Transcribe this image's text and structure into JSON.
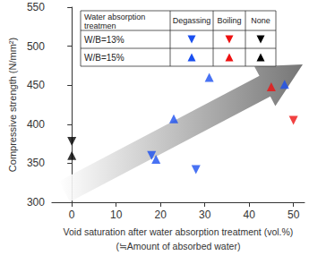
{
  "chart_data": {
    "type": "scatter",
    "xlabel": "Void saturation after water absorption treatment (vol.%)\n(≒Amount of absorbed water)",
    "ylabel": "Compressive strength (N/mm²)",
    "xlim": [
      -4.5,
      52.5
    ],
    "xticks": [
      0,
      10,
      20,
      30,
      40,
      50
    ],
    "ylim": [
      300,
      550
    ],
    "yticks": [
      300,
      350,
      400,
      450,
      500,
      550
    ],
    "grid": false,
    "legend_table": {
      "corner_label": "Water absorption treatmen",
      "columns": [
        "Degassing",
        "Boiling",
        "None"
      ],
      "rows": [
        "W/B=13%",
        "W/B=15%"
      ]
    },
    "series": [
      {
        "mix": "W/B=13%",
        "treatment": "Degassing",
        "color": "#1a4ff0",
        "marker": "triangle-down",
        "x": [
          18,
          28
        ],
        "values": [
          360,
          342
        ]
      },
      {
        "mix": "W/B=15%",
        "treatment": "Degassing",
        "color": "#1a4ff0",
        "marker": "triangle",
        "x": [
          19,
          23,
          31,
          48
        ],
        "values": [
          355,
          407,
          460,
          451
        ]
      },
      {
        "mix": "W/B=13%",
        "treatment": "Boiling",
        "color": "#ee1111",
        "marker": "triangle-down",
        "x": [
          50
        ],
        "values": [
          405
        ]
      },
      {
        "mix": "W/B=15%",
        "treatment": "Boiling",
        "color": "#ee1111",
        "marker": "triangle",
        "x": [
          45
        ],
        "values": [
          448
        ]
      },
      {
        "mix": "W/B=13%",
        "treatment": "None",
        "color": "#000000",
        "marker": "triangle-down",
        "x": [
          0
        ],
        "values": [
          378
        ]
      },
      {
        "mix": "W/B=15%",
        "treatment": "None",
        "color": "#000000",
        "marker": "triangle",
        "x": [
          0
        ],
        "values": [
          360
        ]
      }
    ]
  }
}
